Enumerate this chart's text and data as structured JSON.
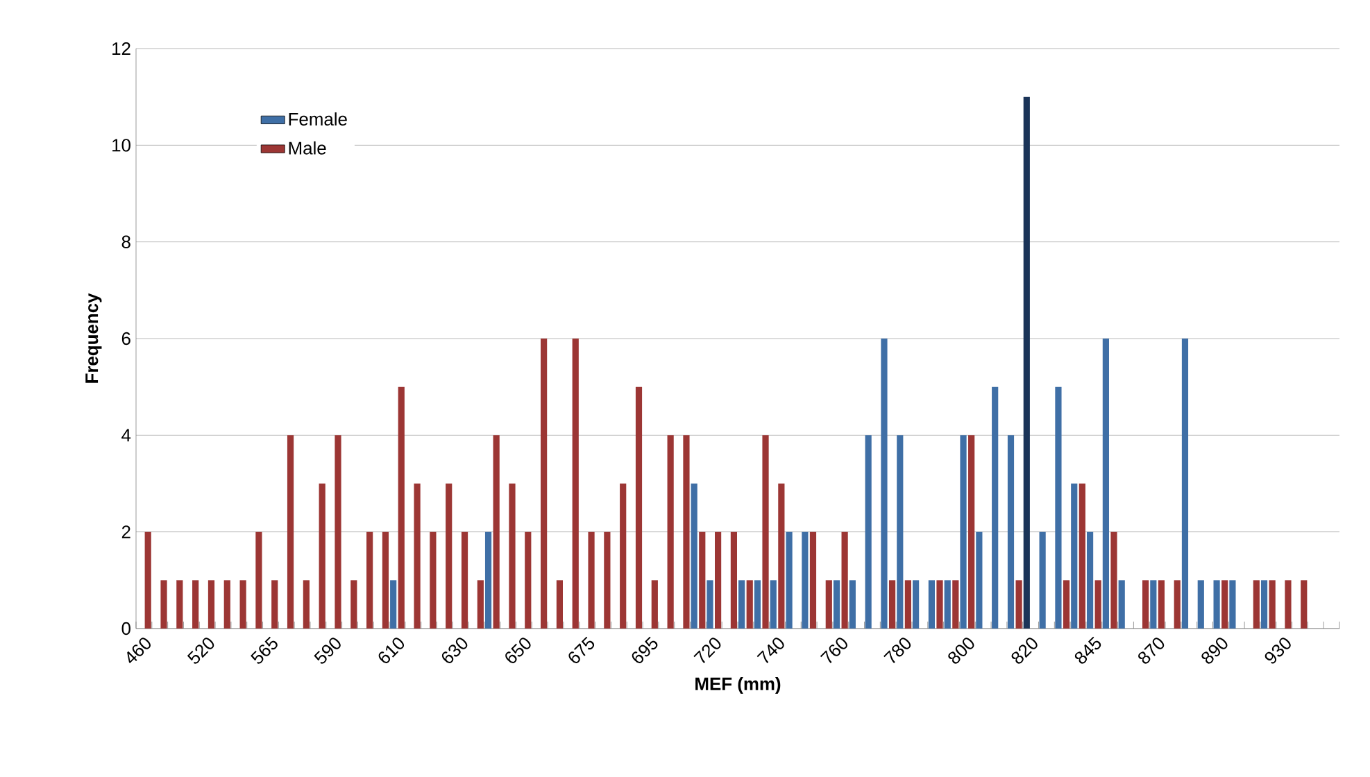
{
  "chart_data": {
    "type": "bar",
    "xlabel": "MEF (mm)",
    "ylabel": "Frequency",
    "categories": [
      "460",
      null,
      null,
      null,
      "520",
      null,
      null,
      null,
      "565",
      null,
      null,
      null,
      "590",
      null,
      null,
      null,
      "610",
      null,
      null,
      null,
      "630",
      null,
      null,
      null,
      "650",
      null,
      null,
      null,
      "675",
      null,
      null,
      null,
      "695",
      null,
      null,
      null,
      "720",
      null,
      null,
      null,
      "740",
      null,
      null,
      null,
      "760",
      null,
      null,
      null,
      "780",
      null,
      null,
      null,
      "800",
      null,
      null,
      null,
      "820",
      null,
      null,
      null,
      "845",
      null,
      null,
      null,
      "870",
      null,
      null,
      null,
      "890",
      null,
      null,
      null,
      "930",
      null,
      null,
      null
    ],
    "series": [
      {
        "name": "Female",
        "color": "#3f6fa6",
        "colors": [
          "#3f6fa6",
          "#3f6fa6",
          "#3f6fa6",
          "#3f6fa6",
          "#3f6fa6",
          "#3f6fa6",
          "#3f6fa6",
          "#3f6fa6",
          "#3f6fa6",
          "#3f6fa6",
          "#3f6fa6",
          "#3f6fa6",
          "#3f6fa6",
          "#3f6fa6",
          "#3f6fa6",
          "#3f6fa6",
          "#3f6fa6",
          "#3f6fa6",
          "#3f6fa6",
          "#3f6fa6",
          "#3f6fa6",
          "#3f6fa6",
          "#3f6fa6",
          "#3f6fa6",
          "#3f6fa6",
          "#3f6fa6",
          "#3f6fa6",
          "#3f6fa6",
          "#3f6fa6",
          "#3f6fa6",
          "#3f6fa6",
          "#3f6fa6",
          "#3f6fa6",
          "#3f6fa6",
          "#3f6fa6",
          "#3f6fa6",
          "#3f6fa6",
          "#3f6fa6",
          "#3f6fa6",
          "#3f6fa6",
          "#3f6fa6",
          "#3f6fa6",
          "#3f6fa6",
          "#3f6fa6",
          "#3f6fa6",
          "#3f6fa6",
          "#3f6fa6",
          "#3f6fa6",
          "#3f6fa6",
          "#3f6fa6",
          "#3f6fa6",
          "#3f6fa6",
          "#3f6fa6",
          "#3f6fa6",
          "#3f6fa6",
          "#3f6fa6",
          "#1a3458",
          "#3f6fa6",
          "#3f6fa6",
          "#3f6fa6",
          "#3f6fa6",
          "#3f6fa6",
          "#3f6fa6",
          "#3f6fa6",
          "#3f6fa6",
          "#3f6fa6",
          "#3f6fa6",
          "#3f6fa6",
          "#3f6fa6",
          "#3f6fa6",
          "#3f6fa6",
          "#3f6fa6",
          "#3f6fa6",
          "#3f6fa6",
          "#3f6fa6",
          "#3f6fa6"
        ],
        "values": [
          0,
          0,
          0,
          0,
          0,
          0,
          0,
          0,
          0,
          0,
          0,
          0,
          0,
          0,
          0,
          0,
          1,
          0,
          0,
          0,
          0,
          0,
          2,
          0,
          0,
          0,
          0,
          0,
          0,
          0,
          0,
          0,
          0,
          0,
          0,
          3,
          1,
          0,
          1,
          1,
          1,
          2,
          2,
          0,
          1,
          1,
          4,
          6,
          4,
          1,
          1,
          1,
          4,
          2,
          5,
          4,
          11,
          2,
          5,
          3,
          2,
          6,
          1,
          0,
          1,
          0,
          6,
          1,
          1,
          1,
          0,
          1,
          0,
          0,
          0,
          0
        ]
      },
      {
        "name": "Male",
        "color": "#9c3634",
        "values": [
          2,
          1,
          1,
          1,
          1,
          1,
          1,
          2,
          1,
          4,
          1,
          3,
          4,
          1,
          2,
          2,
          5,
          3,
          2,
          3,
          2,
          1,
          4,
          3,
          2,
          6,
          1,
          6,
          2,
          2,
          3,
          5,
          1,
          4,
          4,
          2,
          2,
          2,
          1,
          4,
          3,
          0,
          2,
          1,
          2,
          0,
          0,
          1,
          1,
          0,
          1,
          1,
          4,
          0,
          0,
          1,
          0,
          0,
          1,
          3,
          1,
          2,
          0,
          1,
          1,
          1,
          0,
          0,
          1,
          0,
          1,
          1,
          1,
          1,
          0,
          0
        ]
      }
    ],
    "ylim": [
      0,
      12
    ],
    "yticks": [
      0,
      2,
      4,
      6,
      8,
      10,
      12
    ],
    "grid": "y",
    "legend": "top left"
  }
}
